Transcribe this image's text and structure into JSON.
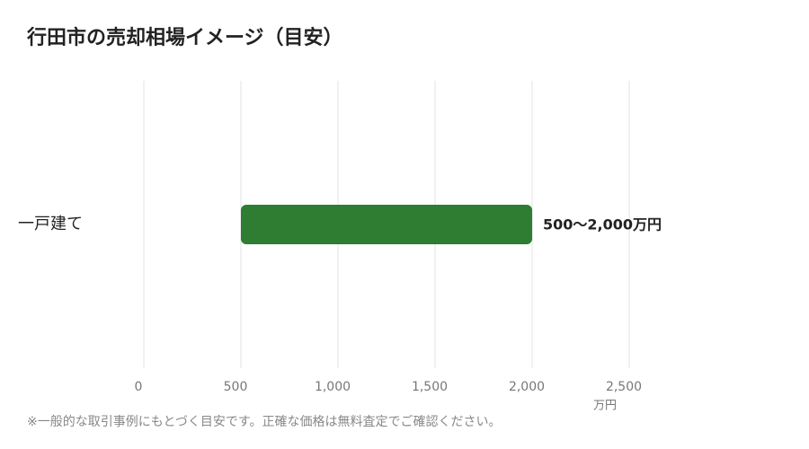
{
  "chart_data": {
    "type": "range-bar",
    "title": "行田市の売却相場イメージ（目安）",
    "categories": [
      "一戸建て"
    ],
    "starts": [
      500
    ],
    "ends": [
      2000
    ],
    "value_labels": [
      "500〜2,000万円"
    ],
    "color": "#2e7d32",
    "xlim": [
      0,
      2500
    ],
    "xticks": [
      0,
      500,
      {
        "value": 1000,
        "label": "1,000"
      },
      {
        "value": 1500,
        "label": "1,500"
      },
      {
        "value": 2000,
        "label": "2,000"
      },
      {
        "value": 2500,
        "label": "2,500"
      }
    ],
    "x_label": "万円",
    "grid": true,
    "footnote": "※一般的な取引事例にもとづく目安です。正確な価格は無料査定でご確認ください。"
  }
}
